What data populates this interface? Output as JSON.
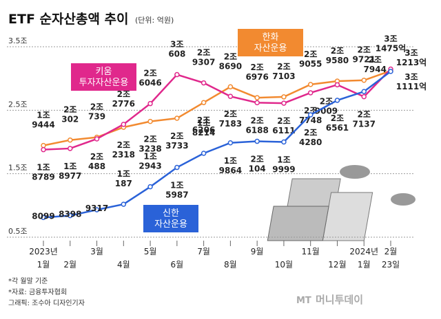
{
  "chart_data": {
    "type": "line",
    "title": "ETF 순자산총액 추이",
    "subtitle": "(단위: 억원)",
    "categories": [
      "2023년 1월",
      "2월",
      "3월",
      "4월",
      "5월",
      "6월",
      "7월",
      "8월",
      "9월",
      "10월",
      "11월",
      "12월",
      "2024년 1월",
      "2월 23일"
    ],
    "ylim": [
      5000,
      35000
    ],
    "yticks": [
      {
        "value": 5000,
        "label": "0.5조"
      },
      {
        "value": 15000,
        "label": "1.5조"
      },
      {
        "value": 25000,
        "label": "2.5조"
      },
      {
        "value": 35000,
        "label": "3.5조"
      }
    ],
    "grid": true,
    "series": [
      {
        "name": "한화 자산운용",
        "color": "#f28a30",
        "values": [
          19444,
          20302,
          20739,
          22318,
          23238,
          23733,
          26206,
          28690,
          26976,
          27103,
          29055,
          29580,
          29721,
          31213
        ],
        "value_labels": [
          [
            "1조",
            "9444"
          ],
          [
            "2조",
            "302"
          ],
          [
            "2조",
            "739"
          ],
          [
            "2조",
            "2318"
          ],
          [
            "2조",
            "3238"
          ],
          [
            "2조",
            "3733"
          ],
          [
            "2조",
            "6206"
          ],
          [
            "2조",
            "8690"
          ],
          [
            "2조",
            "6976"
          ],
          [
            "2조",
            "7103"
          ],
          [
            "2조",
            "9055"
          ],
          [
            "2조",
            "9580"
          ],
          [
            "2조",
            "9721"
          ],
          [
            "3조",
            "1213억"
          ]
        ]
      },
      {
        "name": "키움 투자자산운용",
        "color": "#e0288c",
        "values": [
          18789,
          18977,
          20488,
          22776,
          26046,
          30608,
          29307,
          27183,
          26188,
          26111,
          27748,
          29009,
          27137,
          31475
        ],
        "value_labels": [
          [
            "1조",
            "8789"
          ],
          [
            "1조",
            "8977"
          ],
          [
            "2조",
            "488"
          ],
          [
            "2조",
            "2776"
          ],
          [
            "2조",
            "6046"
          ],
          [
            "3조",
            "608"
          ],
          [
            "2조",
            "9307"
          ],
          [
            "2조",
            "7183"
          ],
          [
            "2조",
            "6188"
          ],
          [
            "2조",
            "6111"
          ],
          [
            "2조",
            "7748"
          ],
          [
            "2조",
            "9009"
          ],
          [
            "2조",
            "7137"
          ],
          [
            "3조",
            "1475억"
          ]
        ]
      },
      {
        "name": "신한 자산운용",
        "color": "#2a62d8",
        "values": [
          8099,
          8398,
          9317,
          10187,
          12943,
          15987,
          18214,
          19864,
          20104,
          19999,
          24280,
          26561,
          27944,
          31111
        ],
        "value_labels": [
          [
            "8099"
          ],
          [
            "8398"
          ],
          [
            "9317"
          ],
          [
            "1조",
            "187"
          ],
          [
            "1조",
            "2943"
          ],
          [
            "1조",
            "5987"
          ],
          [
            "1조",
            "8214"
          ],
          [
            "1조",
            "9864"
          ],
          [
            "2조",
            "104"
          ],
          [
            "1조",
            "9999"
          ],
          [
            "2조",
            "4280"
          ],
          [
            "2조",
            "6561"
          ],
          [
            "2조",
            "7944"
          ],
          [
            "3조",
            "1111억"
          ]
        ]
      }
    ],
    "notes": [
      "*각 월말 기준",
      "*자료: 금융투자협회",
      "그래픽: 조수아 디자인기자"
    ],
    "logo": "머니투데이"
  }
}
